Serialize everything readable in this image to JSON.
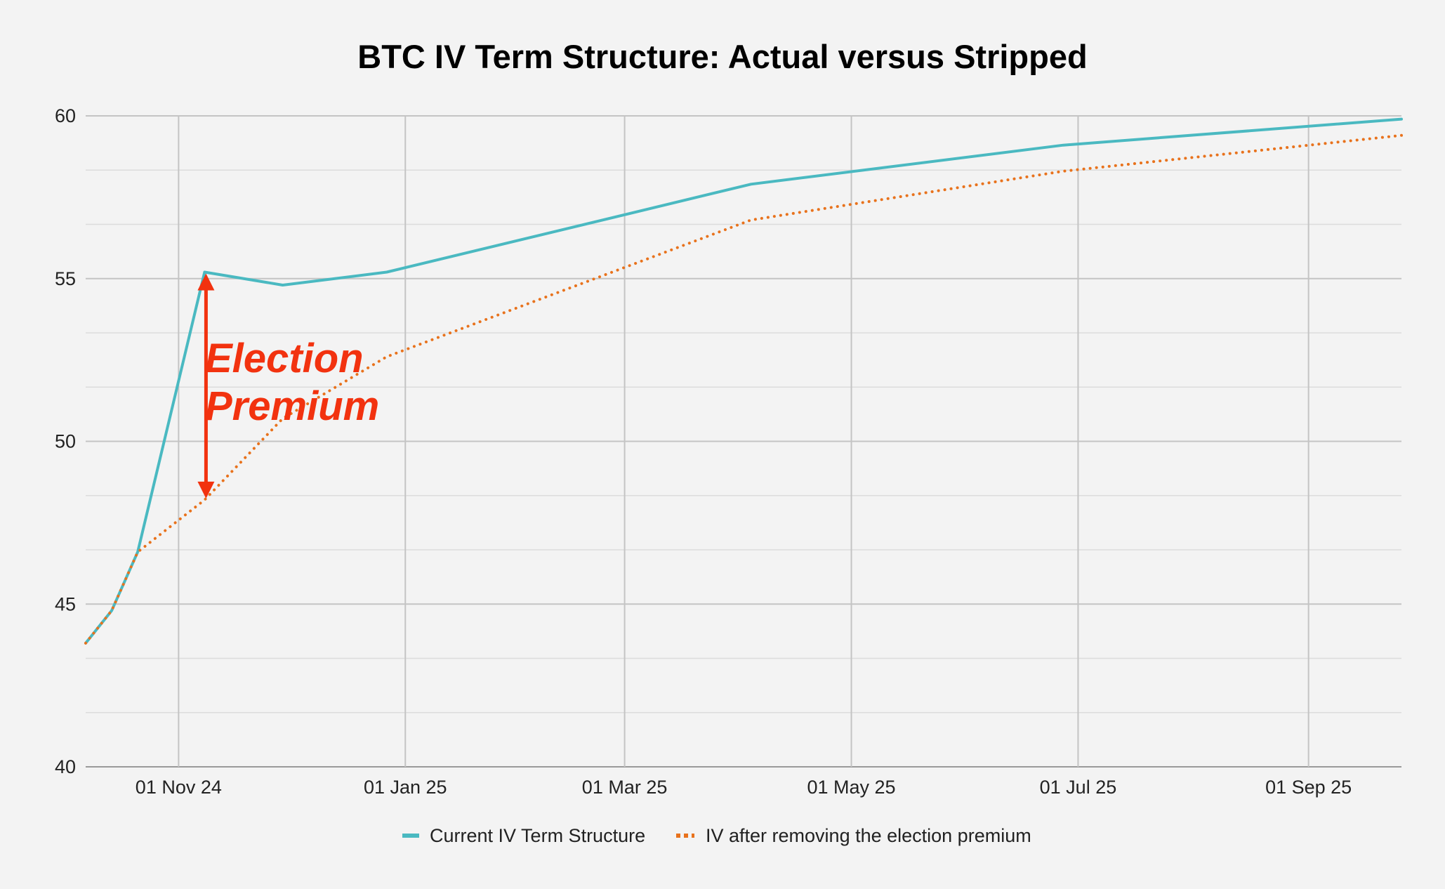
{
  "chart_data": {
    "type": "line",
    "title": "BTC IV Term Structure: Actual versus Stripped",
    "xlabel": "",
    "ylabel": "",
    "x_domain": [
      "2024-10-07",
      "2025-09-26"
    ],
    "ylim": [
      40,
      60
    ],
    "y_ticks": [
      40,
      45,
      50,
      55,
      60
    ],
    "y_minor_step": 1.67,
    "x_ticks": [
      {
        "date": "2024-11-01",
        "label": "01 Nov 24"
      },
      {
        "date": "2025-01-01",
        "label": "01 Jan 25"
      },
      {
        "date": "2025-03-01",
        "label": "01 Mar 25"
      },
      {
        "date": "2025-05-01",
        "label": "01 May 25"
      },
      {
        "date": "2025-07-01",
        "label": "01 Jul 25"
      },
      {
        "date": "2025-09-01",
        "label": "01 Sep 25"
      }
    ],
    "grid": true,
    "legend_position": "bottom",
    "series": [
      {
        "name": "Current IV Term Structure",
        "color": "#4ab9c1",
        "style": "solid",
        "points": [
          [
            "2024-10-07",
            43.8
          ],
          [
            "2024-10-14",
            44.8
          ],
          [
            "2024-10-21",
            46.6
          ],
          [
            "2024-11-08",
            55.2
          ],
          [
            "2024-11-29",
            54.8
          ],
          [
            "2024-12-27",
            55.2
          ],
          [
            "2025-04-04",
            57.9
          ],
          [
            "2025-06-27",
            59.1
          ],
          [
            "2025-09-26",
            59.9
          ]
        ]
      },
      {
        "name": "IV after removing the election premium",
        "color": "#e8721c",
        "style": "dotted",
        "points": [
          [
            "2024-10-07",
            43.8
          ],
          [
            "2024-10-14",
            44.8
          ],
          [
            "2024-10-21",
            46.6
          ],
          [
            "2024-11-08",
            48.2
          ],
          [
            "2024-11-29",
            50.7
          ],
          [
            "2024-12-27",
            52.6
          ],
          [
            "2025-04-04",
            56.8
          ],
          [
            "2025-06-27",
            58.3
          ],
          [
            "2025-09-26",
            59.4
          ]
        ]
      }
    ],
    "annotation": {
      "lines": [
        "Election",
        "Premium"
      ],
      "color": "#f2320f",
      "arrow_date": "2024-11-08",
      "arrow_from": 48.2,
      "arrow_to": 55.2
    }
  }
}
